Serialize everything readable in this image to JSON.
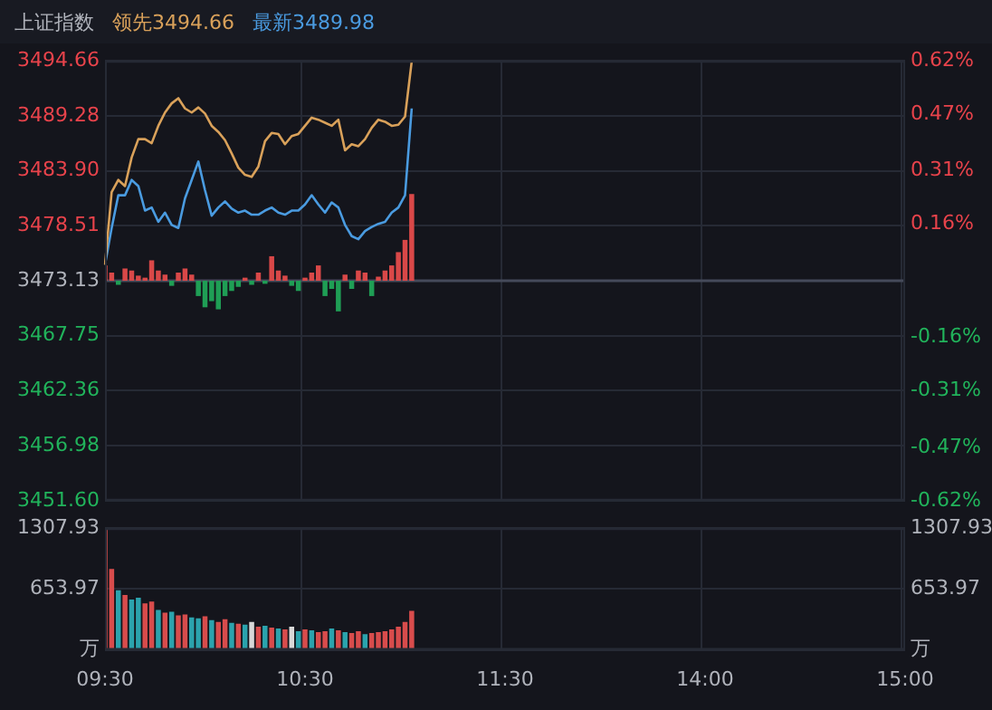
{
  "chart_data": [
    {
      "type": "line",
      "title": "上证指数",
      "legend": "top left",
      "grid": true,
      "tick_labels": "y",
      "categories": [
        null,
        null,
        null,
        null,
        null,
        null,
        null,
        null,
        null,
        null,
        null,
        null,
        null,
        null,
        null,
        null,
        null,
        null,
        null,
        null,
        null,
        null,
        null,
        null,
        null,
        null,
        null,
        null,
        null,
        null,
        null,
        null,
        null,
        null,
        null,
        null,
        null,
        null,
        null,
        null,
        null,
        null,
        null,
        null,
        null,
        null,
        null,
        null,
        null,
        null,
        null,
        null,
        null,
        null,
        null,
        null,
        null,
        null,
        null,
        null,
        null,
        null,
        null,
        null,
        null,
        null,
        null,
        null,
        null,
        null,
        null,
        null,
        null,
        null,
        null,
        null,
        null,
        null,
        null,
        null,
        null,
        null,
        null,
        null,
        null,
        null,
        null,
        null,
        null,
        null,
        null,
        null,
        null,
        null,
        null,
        null,
        null,
        null,
        null,
        null,
        null,
        null,
        null,
        null,
        null,
        null,
        null,
        null,
        null,
        null,
        null,
        null,
        null,
        null,
        null,
        null,
        null,
        null,
        null,
        null,
        null
      ],
      "ylim": [
        3451.6,
        3494.66
      ],
      "yticks": [
        {
          "value": 3451.6,
          "label": "3451.60"
        },
        {
          "value": 3456.98,
          "label": "3456.98"
        },
        {
          "value": 3462.36,
          "label": "3462.36"
        },
        {
          "value": 3467.75,
          "label": "3467.75"
        },
        {
          "value": 3473.13,
          "label": "3473.13"
        },
        {
          "value": 3478.51,
          "label": "3478.51"
        },
        {
          "value": 3483.9,
          "label": "3483.90"
        },
        {
          "value": 3489.28,
          "label": "3489.28"
        },
        {
          "value": 3494.66,
          "label": "3494.66"
        }
      ],
      "y2lim": [
        -0.62,
        0.62
      ],
      "y2ticks": [
        {
          "value": -0.62,
          "label": "-0.62%"
        },
        {
          "value": -0.47,
          "label": "-0.47%"
        },
        {
          "value": -0.31,
          "label": "-0.31%"
        },
        {
          "value": -0.16,
          "label": "-0.16%"
        },
        {
          "value": 0,
          "label": null
        },
        {
          "value": 0.16,
          "label": "0.16%"
        },
        {
          "value": 0.31,
          "label": "0.31%"
        },
        {
          "value": 0.47,
          "label": "0.47%"
        },
        {
          "value": 0.62,
          "label": "0.62%"
        }
      ],
      "ref_lines": [
        {
          "axis": "y",
          "value": 3473.13,
          "color": "#454a5a"
        }
      ],
      "series": [
        {
          "type": "bar",
          "base": [
            3473.13,
            3473.13,
            3473.13,
            3473.13,
            3473.13,
            3473.13,
            3473.13,
            3473.13,
            3473.13,
            3473.13,
            3473.13,
            3473.13,
            3473.13,
            3473.13,
            3473.13,
            3473.13,
            3473.13,
            3473.13,
            3473.13,
            3473.13,
            3473.13,
            3473.13,
            3473.13,
            3473.13,
            3473.13,
            3473.13,
            3473.13,
            3473.13,
            3473.13,
            3473.13,
            3473.13,
            3473.13,
            3473.13,
            3473.13,
            3473.13,
            3473.13,
            3473.13,
            3473.13,
            3473.13,
            3473.13,
            3473.13,
            3473.13,
            3473.13,
            3473.13,
            3473.13,
            3473.13,
            3473.13,
            null,
            null,
            null,
            null,
            null,
            null,
            null,
            null,
            null,
            null,
            null,
            null,
            null,
            null,
            null,
            null,
            null,
            null,
            null,
            null,
            null,
            null,
            null,
            null,
            null,
            null,
            null,
            null,
            null,
            null,
            null,
            null,
            null,
            null,
            null,
            null,
            null,
            null,
            null,
            null,
            null,
            null,
            null,
            null,
            null,
            null,
            null,
            null,
            null,
            null,
            null,
            null,
            null,
            null,
            null,
            null,
            null,
            null,
            null,
            null,
            null,
            null,
            null,
            null,
            null,
            null,
            null,
            null,
            null,
            null,
            null,
            null,
            null,
            null
          ],
          "values": [
            1.5,
            0.8,
            -0.4,
            1.2,
            1.0,
            0.5,
            0.3,
            2.0,
            1.0,
            0.6,
            -0.5,
            0.8,
            1.2,
            0.6,
            -1.5,
            -2.6,
            -2.0,
            -2.8,
            -1.5,
            -1.0,
            -0.6,
            0.3,
            -0.4,
            0.8,
            -0.3,
            2.4,
            1.0,
            0.5,
            -0.5,
            -1.0,
            0.3,
            0.8,
            1.5,
            -1.5,
            -0.8,
            -3.0,
            0.6,
            -0.8,
            1.0,
            0.8,
            -1.5,
            0.4,
            1.0,
            1.5,
            2.8,
            4.0,
            8.5,
            null,
            null,
            null,
            null,
            null,
            null,
            null,
            null,
            null,
            null,
            null,
            null,
            null,
            null,
            null,
            null,
            null,
            null,
            null,
            null,
            null,
            null,
            null,
            null,
            null,
            null,
            null,
            null,
            null,
            null,
            null,
            null,
            null,
            null,
            null,
            null,
            null,
            null,
            null,
            null,
            null,
            null,
            null,
            null,
            null,
            null,
            null,
            null,
            null,
            null,
            null,
            null,
            null,
            null,
            null,
            null,
            null,
            null,
            null,
            null,
            null,
            null,
            null,
            null,
            null,
            null,
            null,
            null,
            null,
            null,
            null,
            null,
            null,
            null
          ],
          "colors": [
            "#d94848",
            "#d94848",
            "#1f9e55",
            "#d94848",
            "#d94848",
            "#d94848",
            "#d94848",
            "#d94848",
            "#d94848",
            "#d94848",
            "#1f9e55",
            "#d94848",
            "#d94848",
            "#d94848",
            "#1f9e55",
            "#1f9e55",
            "#1f9e55",
            "#1f9e55",
            "#1f9e55",
            "#1f9e55",
            "#1f9e55",
            "#d94848",
            "#1f9e55",
            "#d94848",
            "#1f9e55",
            "#d94848",
            "#d94848",
            "#d94848",
            "#1f9e55",
            "#1f9e55",
            "#d94848",
            "#d94848",
            "#d94848",
            "#1f9e55",
            "#1f9e55",
            "#1f9e55",
            "#d94848",
            "#1f9e55",
            "#d94848",
            "#d94848",
            "#1f9e55",
            "#d94848",
            "#d94848",
            "#d94848",
            "#d94848",
            "#d94848",
            "#d94848",
            null,
            null,
            null,
            null,
            null,
            null,
            null,
            null,
            null,
            null,
            null,
            null,
            null,
            null,
            null,
            null,
            null,
            null,
            null,
            null,
            null,
            null,
            null,
            null,
            null,
            null,
            null,
            null,
            null,
            null,
            null,
            null,
            null,
            null,
            null,
            null,
            null,
            null,
            null,
            null,
            null,
            null,
            null,
            null,
            null,
            null,
            null,
            null,
            null,
            null,
            null,
            null,
            null,
            null,
            null,
            null,
            null,
            null,
            null,
            null,
            null,
            null,
            null,
            null,
            null,
            null,
            null,
            null,
            null,
            null,
            null,
            null,
            null,
            null
          ]
        },
        {
          "name": "领先3494.66",
          "color": "#d9a15a",
          "values": [
            3474.7,
            3481.8,
            3483.0,
            3482.4,
            3485.2,
            3487.0,
            3487.0,
            3486.6,
            3488.3,
            3489.6,
            3490.5,
            3491.0,
            3490.0,
            3489.6,
            3490.1,
            3489.5,
            3488.3,
            3487.7,
            3486.9,
            3485.6,
            3484.2,
            3483.5,
            3483.3,
            3484.3,
            3486.8,
            3487.6,
            3487.5,
            3486.5,
            3487.3,
            3487.5,
            3488.3,
            3489.1,
            3488.9,
            3488.6,
            3488.3,
            3488.9,
            3485.9,
            3486.5,
            3486.3,
            3487.0,
            3488.1,
            3488.9,
            3488.7,
            3488.3,
            3488.4,
            3489.2,
            3494.6,
            null,
            null,
            null,
            null,
            null,
            null,
            null,
            null,
            null,
            null,
            null,
            null,
            null,
            null,
            null,
            null,
            null,
            null,
            null,
            null,
            null,
            null,
            null,
            null,
            null,
            null,
            null,
            null,
            null,
            null,
            null,
            null,
            null,
            null,
            null,
            null,
            null,
            null,
            null,
            null,
            null,
            null,
            null,
            null,
            null,
            null,
            null,
            null,
            null,
            null,
            null,
            null,
            null,
            null,
            null,
            null,
            null,
            null,
            null,
            null,
            null,
            null,
            null,
            null,
            null,
            null,
            null,
            null,
            null,
            null,
            null,
            null,
            null,
            null
          ]
        },
        {
          "name": "最新3489.98",
          "color": "#4a9be0",
          "values": [
            3474.7,
            3478.3,
            3481.5,
            3481.5,
            3483.0,
            3482.4,
            3480.0,
            3480.3,
            3478.9,
            3479.8,
            3478.6,
            3478.3,
            3481.2,
            3483.0,
            3484.8,
            3482.0,
            3479.5,
            3480.3,
            3480.9,
            3480.2,
            3479.8,
            3480.0,
            3479.6,
            3479.6,
            3480.0,
            3480.3,
            3479.8,
            3479.6,
            3480.0,
            3480.0,
            3480.6,
            3481.5,
            3480.6,
            3479.8,
            3480.8,
            3480.3,
            3478.6,
            3477.5,
            3477.2,
            3478.0,
            3478.4,
            3478.7,
            3478.9,
            3479.8,
            3480.3,
            3481.5,
            3490.0,
            null,
            null,
            null,
            null,
            null,
            null,
            null,
            null,
            null,
            null,
            null,
            null,
            null,
            null,
            null,
            null,
            null,
            null,
            null,
            null,
            null,
            null,
            null,
            null,
            null,
            null,
            null,
            null,
            null,
            null,
            null,
            null,
            null,
            null,
            null,
            null,
            null,
            null,
            null,
            null,
            null,
            null,
            null,
            null,
            null,
            null,
            null,
            null,
            null,
            null,
            null,
            null,
            null,
            null,
            null,
            null,
            null,
            null,
            null,
            null,
            null,
            null,
            null,
            null,
            null,
            null,
            null,
            null,
            null,
            null,
            null,
            null,
            null,
            null
          ]
        }
      ]
    },
    {
      "type": "bar",
      "grid": true,
      "categories": [
        "09:30",
        null,
        null,
        null,
        null,
        null,
        null,
        null,
        null,
        null,
        null,
        null,
        null,
        null,
        null,
        null,
        null,
        null,
        null,
        null,
        null,
        null,
        null,
        null,
        null,
        null,
        null,
        null,
        null,
        null,
        "10:30",
        null,
        null,
        null,
        null,
        null,
        null,
        null,
        null,
        null,
        null,
        null,
        null,
        null,
        null,
        null,
        null,
        null,
        null,
        null,
        null,
        null,
        null,
        null,
        null,
        null,
        null,
        null,
        null,
        null,
        "11:30",
        null,
        null,
        null,
        null,
        null,
        null,
        null,
        null,
        null,
        null,
        null,
        null,
        null,
        null,
        null,
        null,
        null,
        null,
        null,
        null,
        null,
        null,
        null,
        null,
        null,
        null,
        null,
        null,
        null,
        "14:00",
        null,
        null,
        null,
        null,
        null,
        null,
        null,
        null,
        null,
        null,
        null,
        null,
        null,
        null,
        null,
        null,
        null,
        null,
        null,
        null,
        null,
        null,
        null,
        null,
        null,
        null,
        null,
        null,
        null,
        "15:00"
      ],
      "ylim": [
        0,
        1307.93
      ],
      "yticks": [
        {
          "value": 0,
          "label": "万"
        },
        {
          "value": 653.97,
          "label": "653.97"
        },
        {
          "value": 1307.93,
          "label": "1307.93"
        }
      ],
      "y2lim": [
        0,
        1307.93
      ],
      "y2ticks": [
        {
          "value": 0,
          "label": "万"
        },
        {
          "value": 653.97,
          "label": "653.97"
        },
        {
          "value": 1307.93,
          "label": "1307.93"
        }
      ],
      "series": [
        {
          "values": [
            1300,
            870,
            640,
            590,
            540,
            560,
            500,
            520,
            430,
            400,
            410,
            370,
            380,
            350,
            340,
            360,
            320,
            300,
            330,
            290,
            280,
            270,
            300,
            250,
            260,
            240,
            230,
            220,
            250,
            200,
            220,
            210,
            190,
            200,
            230,
            210,
            190,
            180,
            200,
            170,
            180,
            190,
            200,
            220,
            250,
            300,
            420,
            null,
            null,
            null,
            null,
            null,
            null,
            null,
            null,
            null,
            null,
            null,
            null,
            null,
            null,
            null,
            null,
            null,
            null,
            null,
            null,
            null,
            null,
            null,
            null,
            null,
            null,
            null,
            null,
            null,
            null,
            null,
            null,
            null,
            null,
            null,
            null,
            null,
            null,
            null,
            null,
            null,
            null,
            null,
            null,
            null,
            null,
            null,
            null,
            null,
            null,
            null,
            null,
            null,
            null,
            null,
            null,
            null,
            null,
            null,
            null,
            null,
            null,
            null,
            null,
            null,
            null,
            null,
            null,
            null,
            null,
            null,
            null,
            null,
            null
          ],
          "colors": [
            "#d84c4c",
            "#d84c4c",
            "#2ba3ad",
            "#d84c4c",
            "#2ba3ad",
            "#2ba3ad",
            "#d84c4c",
            "#d84c4c",
            "#2ba3ad",
            "#d84c4c",
            "#2ba3ad",
            "#d84c4c",
            "#d84c4c",
            "#2ba3ad",
            "#2ba3ad",
            "#d84c4c",
            "#2ba3ad",
            "#d84c4c",
            "#d84c4c",
            "#2ba3ad",
            "#d84c4c",
            "#2ba3ad",
            "#d8d8d8",
            "#d84c4c",
            "#2ba3ad",
            "#d84c4c",
            "#2ba3ad",
            "#d84c4c",
            "#d8d8d8",
            "#2ba3ad",
            "#d84c4c",
            "#2ba3ad",
            "#d84c4c",
            "#d84c4c",
            "#2ba3ad",
            "#d84c4c",
            "#2ba3ad",
            "#d84c4c",
            "#d84c4c",
            "#2ba3ad",
            "#d84c4c",
            "#d84c4c",
            "#d84c4c",
            "#d84c4c",
            "#d84c4c",
            "#d84c4c",
            "#d84c4c",
            null,
            null,
            null,
            null,
            null,
            null,
            null,
            null,
            null,
            null,
            null,
            null,
            null,
            null,
            null,
            null,
            null,
            null,
            null,
            null,
            null,
            null,
            null,
            null,
            null,
            null,
            null,
            null,
            null,
            null,
            null,
            null,
            null,
            null,
            null,
            null,
            null,
            null,
            null,
            null,
            null,
            null,
            null,
            null,
            null,
            null,
            null,
            null,
            null,
            null,
            null,
            null,
            null,
            null,
            null,
            null,
            null,
            null,
            null,
            null,
            null,
            null,
            null,
            null,
            null,
            null,
            null,
            null,
            null,
            null,
            null,
            null,
            null,
            null
          ]
        }
      ]
    }
  ]
}
